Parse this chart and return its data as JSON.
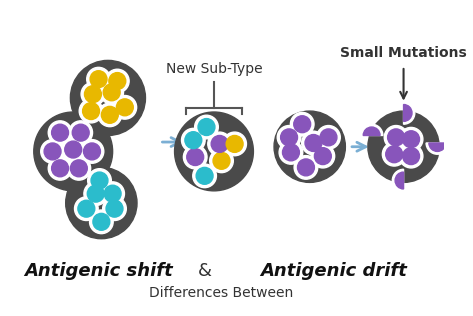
{
  "title_top": "Differences Between",
  "title_left": "Antigenic shift",
  "title_amp": "&",
  "title_right": "Antigenic drift",
  "label_left": "New Sub-Type",
  "label_right": "Small Mutations",
  "bg_color": "#ffffff",
  "virus_color": "#4a4a4a",
  "cyan_color": "#2bbccc",
  "purple_color": "#8855bb",
  "yellow_color": "#e8b800",
  "outline_color": "#ffffff",
  "arrow_color": "#7bafd4",
  "text_color": "#333333",
  "title_fontsize": 10,
  "heading_fontsize": 13,
  "label_fontsize": 10
}
